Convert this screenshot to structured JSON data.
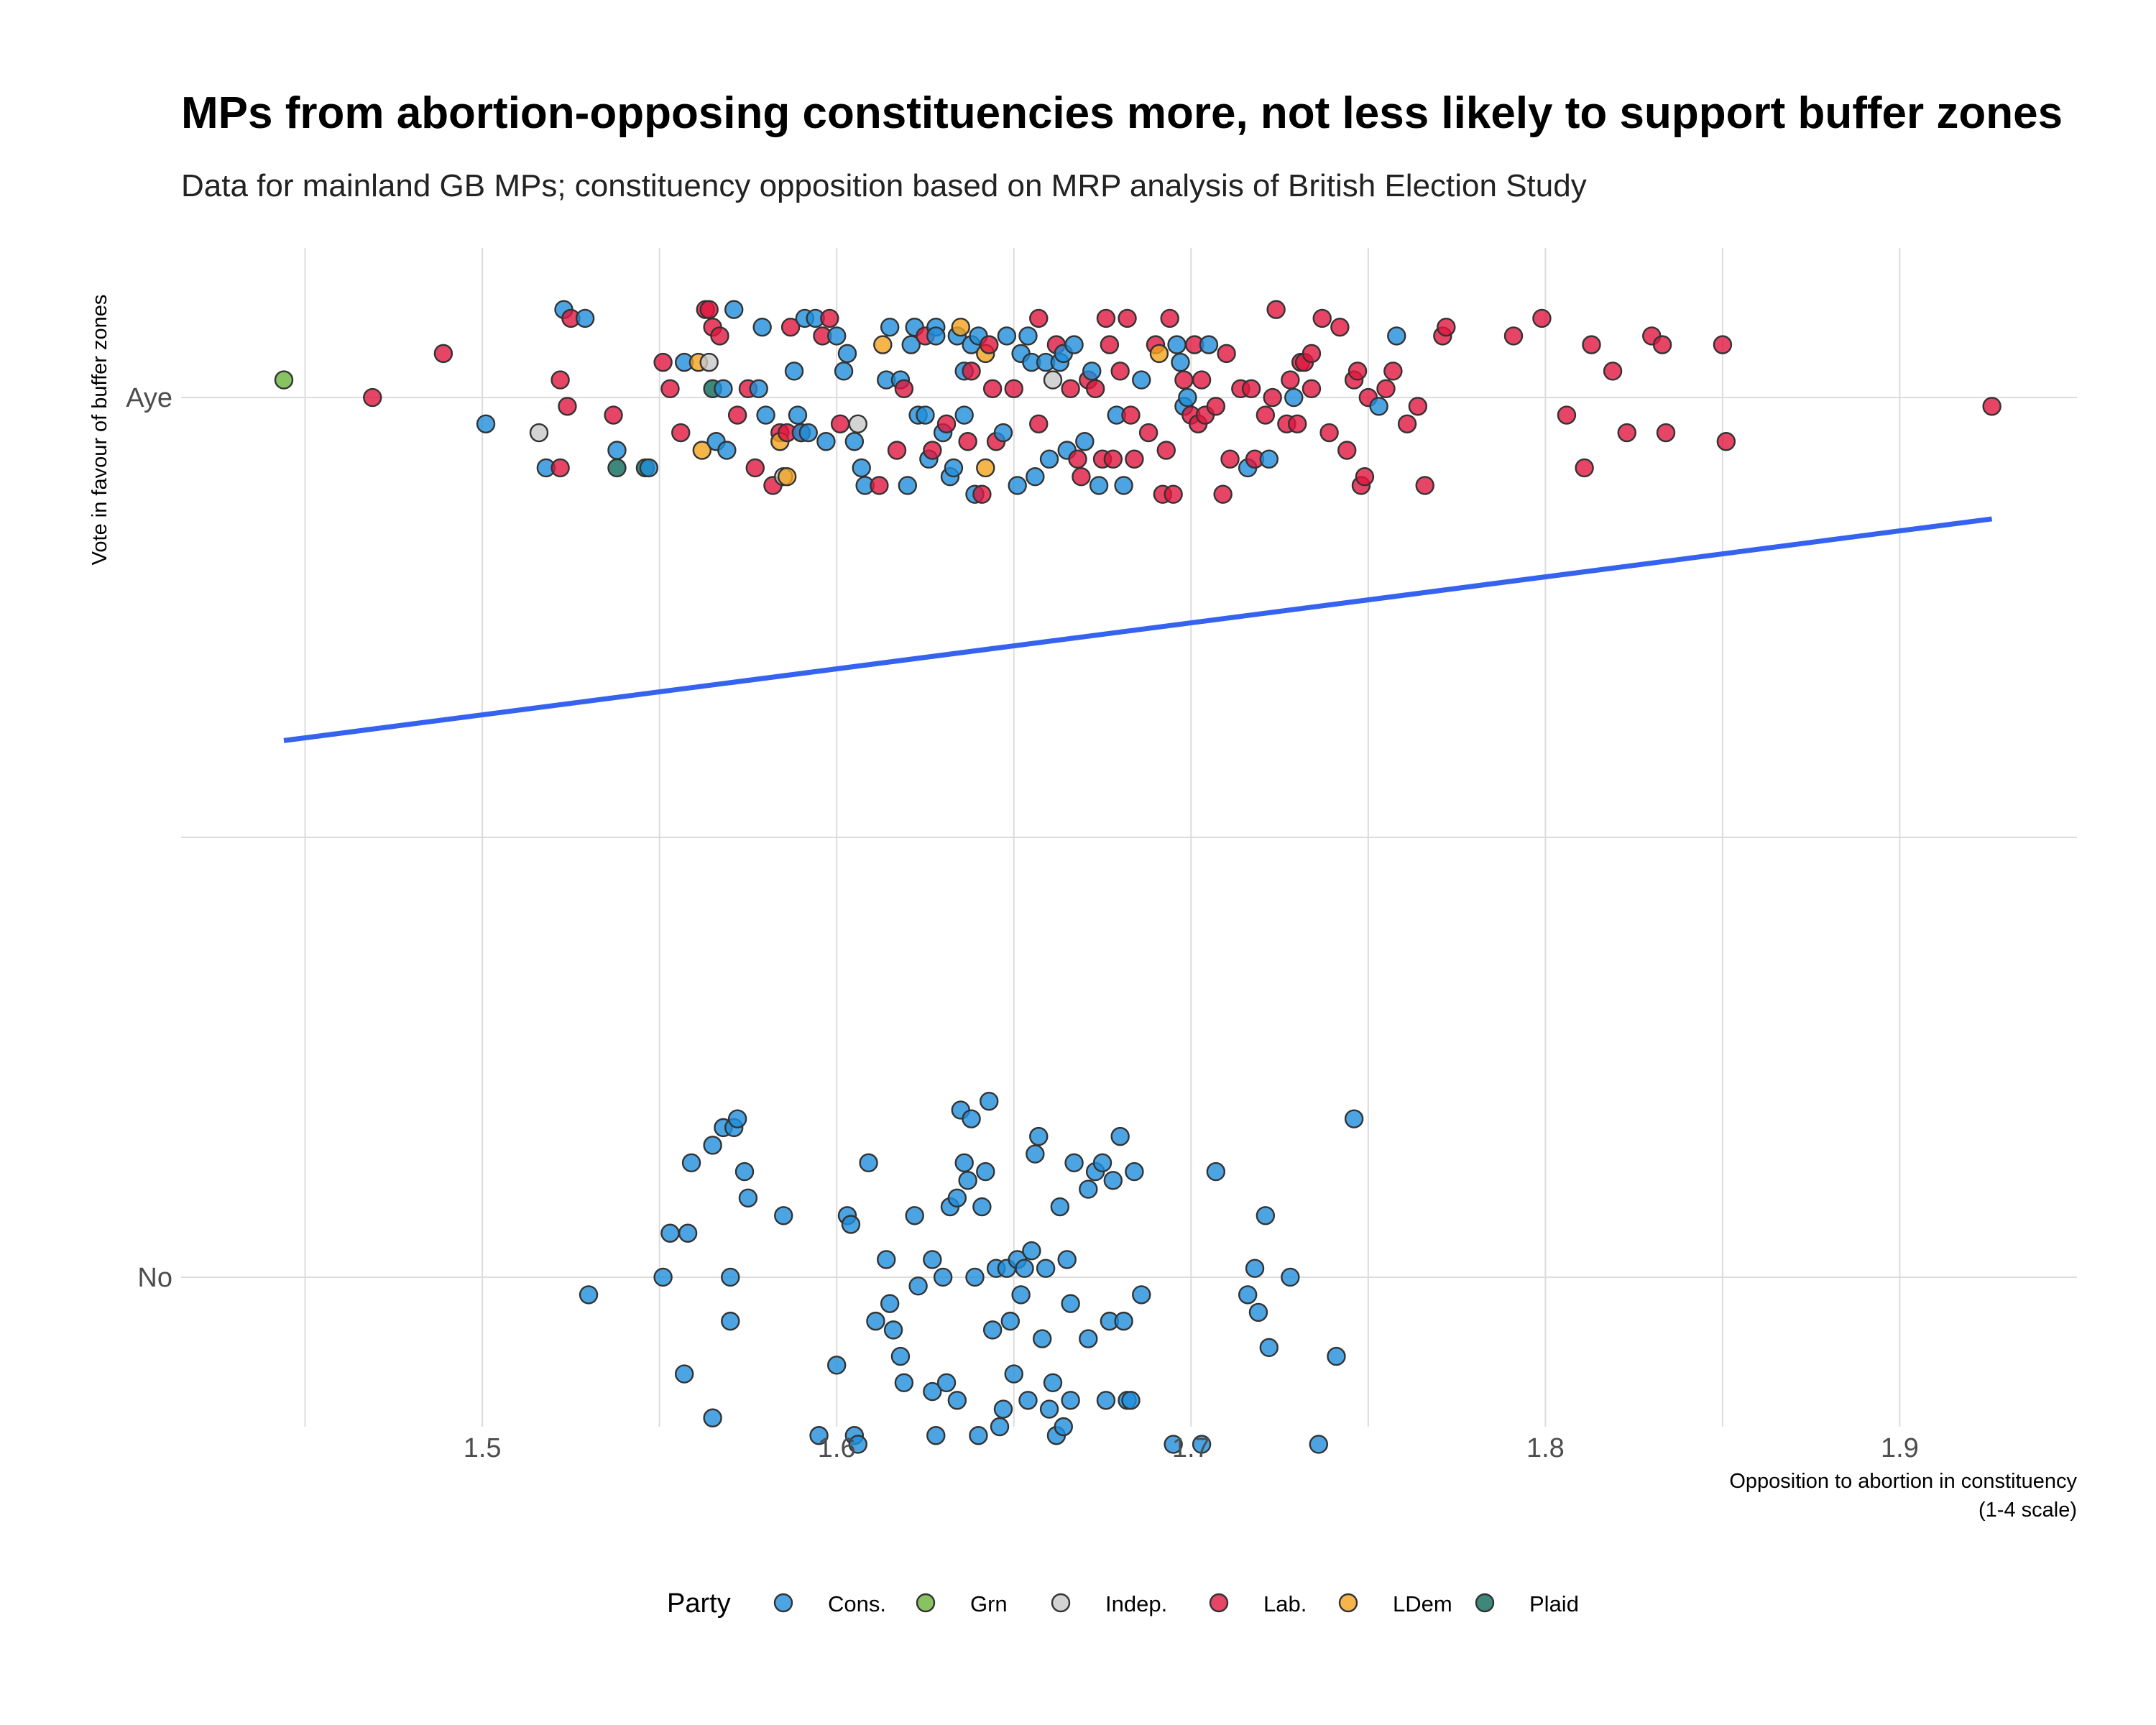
{
  "chart_data": {
    "type": "scatter",
    "title": "MPs from abortion-opposing constituencies more, not less likely to support buffer zones",
    "subtitle": "Data for mainland GB MPs; constituency opposition based on MRP analysis of British Election Study",
    "xlabel_line1": "Opposition to abortion in constituency",
    "xlabel_line2": "(1-4 scale)",
    "ylabel": "Vote in favour of buffer zones",
    "xlim": [
      1.415,
      1.95
    ],
    "x_ticks": [
      {
        "value": 1.5,
        "label": "1.5"
      },
      {
        "value": 1.6,
        "label": "1.6"
      },
      {
        "value": 1.7,
        "label": "1.7"
      },
      {
        "value": 1.8,
        "label": "1.8"
      },
      {
        "value": 1.9,
        "label": "1.9"
      }
    ],
    "x_minor_grid": [
      1.45,
      1.55,
      1.65,
      1.75,
      1.85
    ],
    "ylim": [
      -0.17,
      1.17
    ],
    "y_ticks": [
      {
        "value": 1,
        "label": "Aye"
      },
      {
        "value": 0,
        "label": "No"
      }
    ],
    "y_minor_grid": [
      0.5
    ],
    "grid": true,
    "legend_title": "Party",
    "legend_position": "bottom",
    "parties": [
      {
        "name": "Cons.",
        "color": "#1f8fdb"
      },
      {
        "name": "Grn",
        "color": "#6ab43b"
      },
      {
        "name": "Indep.",
        "color": "#c8c8c8"
      },
      {
        "name": "Lab.",
        "color": "#e0173f"
      },
      {
        "name": "LDem",
        "color": "#f2a31e"
      },
      {
        "name": "Plaid",
        "color": "#0c6a5a"
      }
    ],
    "trend_line": {
      "color": "#3563f0",
      "x": [
        1.444,
        1.926
      ],
      "y": [
        0.61,
        0.862
      ]
    },
    "point_format": "[opposition, vote (1=Aye, 0=No, jittered), party index]",
    "points": [
      [
        1.444,
        1.02,
        1
      ],
      [
        1.469,
        1.0,
        3
      ],
      [
        1.489,
        1.05,
        3
      ],
      [
        1.501,
        0.97,
        0
      ],
      [
        1.516,
        0.96,
        2
      ],
      [
        1.518,
        0.92,
        0
      ],
      [
        1.522,
        1.02,
        3
      ],
      [
        1.522,
        0.92,
        3
      ],
      [
        1.523,
        1.1,
        0
      ],
      [
        1.524,
        0.99,
        3
      ],
      [
        1.525,
        1.09,
        3
      ],
      [
        1.529,
        1.09,
        0
      ],
      [
        1.537,
        0.98,
        3
      ],
      [
        1.538,
        0.94,
        0
      ],
      [
        1.538,
        0.92,
        5
      ],
      [
        1.546,
        0.92,
        5
      ],
      [
        1.547,
        0.92,
        0
      ],
      [
        1.551,
        1.04,
        3
      ],
      [
        1.553,
        1.01,
        3
      ],
      [
        1.556,
        0.96,
        3
      ],
      [
        1.557,
        1.04,
        0
      ],
      [
        1.561,
        1.04,
        4
      ],
      [
        1.562,
        0.94,
        4
      ],
      [
        1.563,
        1.1,
        3
      ],
      [
        1.564,
        1.04,
        2
      ],
      [
        1.564,
        1.1,
        3
      ],
      [
        1.565,
        1.08,
        3
      ],
      [
        1.565,
        1.01,
        5
      ],
      [
        1.566,
        0.95,
        0
      ],
      [
        1.567,
        1.07,
        3
      ],
      [
        1.568,
        1.01,
        0
      ],
      [
        1.569,
        0.94,
        0
      ],
      [
        1.571,
        1.1,
        0
      ],
      [
        1.572,
        0.98,
        3
      ],
      [
        1.575,
        1.01,
        3
      ],
      [
        1.577,
        0.92,
        3
      ],
      [
        1.578,
        1.01,
        0
      ],
      [
        1.579,
        1.08,
        0
      ],
      [
        1.58,
        0.98,
        0
      ],
      [
        1.582,
        0.9,
        3
      ],
      [
        1.584,
        0.96,
        3
      ],
      [
        1.584,
        0.95,
        4
      ],
      [
        1.585,
        0.91,
        2
      ],
      [
        1.586,
        0.91,
        4
      ],
      [
        1.586,
        0.96,
        3
      ],
      [
        1.587,
        1.08,
        3
      ],
      [
        1.588,
        1.03,
        0
      ],
      [
        1.589,
        0.98,
        0
      ],
      [
        1.59,
        0.96,
        3
      ],
      [
        1.59,
        0.96,
        0
      ],
      [
        1.591,
        1.09,
        0
      ],
      [
        1.592,
        0.96,
        0
      ],
      [
        1.594,
        1.09,
        0
      ],
      [
        1.596,
        1.07,
        3
      ],
      [
        1.597,
        0.95,
        0
      ],
      [
        1.598,
        1.09,
        3
      ],
      [
        1.6,
        1.07,
        0
      ],
      [
        1.601,
        0.97,
        3
      ],
      [
        1.602,
        1.03,
        0
      ],
      [
        1.603,
        1.05,
        0
      ],
      [
        1.605,
        0.95,
        0
      ],
      [
        1.606,
        0.97,
        2
      ],
      [
        1.607,
        0.92,
        0
      ],
      [
        1.608,
        0.9,
        0
      ],
      [
        1.612,
        0.9,
        3
      ],
      [
        1.613,
        1.06,
        4
      ],
      [
        1.614,
        1.02,
        0
      ],
      [
        1.615,
        1.08,
        0
      ],
      [
        1.617,
        0.94,
        3
      ],
      [
        1.618,
        1.02,
        0
      ],
      [
        1.619,
        1.01,
        3
      ],
      [
        1.62,
        0.9,
        0
      ],
      [
        1.621,
        1.06,
        0
      ],
      [
        1.622,
        1.08,
        0
      ],
      [
        1.623,
        0.98,
        0
      ],
      [
        1.625,
        1.07,
        3
      ],
      [
        1.625,
        0.98,
        0
      ],
      [
        1.626,
        0.93,
        0
      ],
      [
        1.627,
        0.94,
        3
      ],
      [
        1.628,
        1.08,
        0
      ],
      [
        1.628,
        1.07,
        0
      ],
      [
        1.63,
        0.96,
        0
      ],
      [
        1.631,
        0.97,
        3
      ],
      [
        1.632,
        0.91,
        0
      ],
      [
        1.633,
        0.92,
        0
      ],
      [
        1.634,
        1.07,
        0
      ],
      [
        1.635,
        1.08,
        4
      ],
      [
        1.636,
        0.98,
        0
      ],
      [
        1.636,
        1.03,
        0
      ],
      [
        1.637,
        0.95,
        3
      ],
      [
        1.638,
        1.06,
        0
      ],
      [
        1.638,
        1.03,
        3
      ],
      [
        1.639,
        0.89,
        0
      ],
      [
        1.64,
        1.07,
        0
      ],
      [
        1.641,
        0.89,
        3
      ],
      [
        1.642,
        1.05,
        4
      ],
      [
        1.642,
        0.92,
        4
      ],
      [
        1.643,
        1.06,
        3
      ],
      [
        1.644,
        1.01,
        3
      ],
      [
        1.645,
        0.95,
        3
      ],
      [
        1.647,
        0.96,
        0
      ],
      [
        1.648,
        1.07,
        0
      ],
      [
        1.65,
        1.01,
        3
      ],
      [
        1.651,
        0.9,
        0
      ],
      [
        1.652,
        1.05,
        0
      ],
      [
        1.654,
        1.07,
        0
      ],
      [
        1.655,
        1.04,
        0
      ],
      [
        1.656,
        0.91,
        0
      ],
      [
        1.657,
        1.09,
        3
      ],
      [
        1.657,
        0.97,
        3
      ],
      [
        1.659,
        1.04,
        0
      ],
      [
        1.66,
        0.93,
        0
      ],
      [
        1.661,
        1.02,
        2
      ],
      [
        1.662,
        1.06,
        3
      ],
      [
        1.663,
        1.04,
        0
      ],
      [
        1.664,
        1.05,
        0
      ],
      [
        1.665,
        0.94,
        0
      ],
      [
        1.666,
        1.01,
        3
      ],
      [
        1.667,
        1.06,
        0
      ],
      [
        1.668,
        0.93,
        3
      ],
      [
        1.669,
        0.91,
        3
      ],
      [
        1.67,
        0.95,
        0
      ],
      [
        1.671,
        1.02,
        3
      ],
      [
        1.672,
        1.03,
        0
      ],
      [
        1.673,
        1.01,
        3
      ],
      [
        1.674,
        0.9,
        0
      ],
      [
        1.675,
        0.93,
        3
      ],
      [
        1.676,
        1.09,
        3
      ],
      [
        1.677,
        1.06,
        3
      ],
      [
        1.678,
        0.93,
        3
      ],
      [
        1.679,
        0.98,
        0
      ],
      [
        1.68,
        1.03,
        3
      ],
      [
        1.681,
        0.9,
        0
      ],
      [
        1.682,
        1.09,
        3
      ],
      [
        1.683,
        0.98,
        3
      ],
      [
        1.684,
        0.93,
        3
      ],
      [
        1.686,
        1.02,
        0
      ],
      [
        1.688,
        0.96,
        3
      ],
      [
        1.69,
        1.06,
        3
      ],
      [
        1.691,
        1.05,
        4
      ],
      [
        1.692,
        0.89,
        3
      ],
      [
        1.693,
        0.94,
        3
      ],
      [
        1.694,
        1.09,
        3
      ],
      [
        1.695,
        0.89,
        3
      ],
      [
        1.696,
        1.06,
        0
      ],
      [
        1.697,
        1.04,
        0
      ],
      [
        1.698,
        0.99,
        0
      ],
      [
        1.698,
        1.02,
        3
      ],
      [
        1.699,
        1.0,
        0
      ],
      [
        1.7,
        0.98,
        3
      ],
      [
        1.701,
        1.06,
        3
      ],
      [
        1.702,
        0.97,
        3
      ],
      [
        1.703,
        1.02,
        3
      ],
      [
        1.704,
        0.98,
        3
      ],
      [
        1.705,
        1.06,
        0
      ],
      [
        1.707,
        0.99,
        3
      ],
      [
        1.709,
        0.89,
        3
      ],
      [
        1.71,
        1.05,
        3
      ],
      [
        1.711,
        0.93,
        3
      ],
      [
        1.714,
        1.01,
        3
      ],
      [
        1.716,
        0.92,
        0
      ],
      [
        1.717,
        1.01,
        3
      ],
      [
        1.718,
        0.93,
        3
      ],
      [
        1.721,
        0.98,
        3
      ],
      [
        1.722,
        0.93,
        0
      ],
      [
        1.723,
        1.0,
        3
      ],
      [
        1.724,
        1.1,
        3
      ],
      [
        1.727,
        0.97,
        3
      ],
      [
        1.728,
        1.02,
        3
      ],
      [
        1.729,
        1.0,
        0
      ],
      [
        1.73,
        0.97,
        3
      ],
      [
        1.731,
        1.04,
        3
      ],
      [
        1.732,
        1.04,
        3
      ],
      [
        1.734,
        1.05,
        3
      ],
      [
        1.734,
        1.01,
        3
      ],
      [
        1.737,
        1.09,
        3
      ],
      [
        1.739,
        0.96,
        3
      ],
      [
        1.742,
        1.08,
        3
      ],
      [
        1.744,
        0.94,
        3
      ],
      [
        1.746,
        1.02,
        3
      ],
      [
        1.747,
        1.03,
        3
      ],
      [
        1.748,
        0.9,
        3
      ],
      [
        1.749,
        0.91,
        3
      ],
      [
        1.75,
        1.0,
        3
      ],
      [
        1.753,
        0.99,
        0
      ],
      [
        1.755,
        1.01,
        3
      ],
      [
        1.757,
        1.03,
        3
      ],
      [
        1.758,
        1.07,
        0
      ],
      [
        1.761,
        0.97,
        3
      ],
      [
        1.764,
        0.99,
        3
      ],
      [
        1.766,
        0.9,
        3
      ],
      [
        1.771,
        1.07,
        3
      ],
      [
        1.772,
        1.08,
        3
      ],
      [
        1.791,
        1.07,
        3
      ],
      [
        1.799,
        1.09,
        3
      ],
      [
        1.806,
        0.98,
        3
      ],
      [
        1.811,
        0.92,
        3
      ],
      [
        1.813,
        1.06,
        3
      ],
      [
        1.819,
        1.03,
        3
      ],
      [
        1.823,
        0.96,
        3
      ],
      [
        1.83,
        1.07,
        3
      ],
      [
        1.833,
        1.06,
        3
      ],
      [
        1.834,
        0.96,
        3
      ],
      [
        1.85,
        1.06,
        3
      ],
      [
        1.851,
        0.95,
        3
      ],
      [
        1.926,
        0.99,
        3
      ],
      [
        1.53,
        -0.02,
        0
      ],
      [
        1.551,
        0.0,
        0
      ],
      [
        1.553,
        0.05,
        0
      ],
      [
        1.557,
        -0.11,
        0
      ],
      [
        1.558,
        0.05,
        0
      ],
      [
        1.559,
        0.13,
        0
      ],
      [
        1.565,
        -0.16,
        0
      ],
      [
        1.565,
        0.15,
        0
      ],
      [
        1.568,
        0.17,
        0
      ],
      [
        1.571,
        0.17,
        0
      ],
      [
        1.57,
        0.0,
        0
      ],
      [
        1.57,
        -0.05,
        0
      ],
      [
        1.572,
        0.18,
        0
      ],
      [
        1.574,
        0.12,
        0
      ],
      [
        1.575,
        0.09,
        0
      ],
      [
        1.585,
        0.07,
        0
      ],
      [
        1.595,
        -0.18,
        0
      ],
      [
        1.6,
        -0.1,
        0
      ],
      [
        1.603,
        0.07,
        0
      ],
      [
        1.604,
        0.06,
        0
      ],
      [
        1.605,
        -0.18,
        0
      ],
      [
        1.606,
        -0.19,
        0
      ],
      [
        1.609,
        0.13,
        0
      ],
      [
        1.611,
        -0.05,
        0
      ],
      [
        1.614,
        0.02,
        0
      ],
      [
        1.615,
        -0.03,
        0
      ],
      [
        1.616,
        -0.06,
        0
      ],
      [
        1.618,
        -0.09,
        0
      ],
      [
        1.619,
        -0.12,
        0
      ],
      [
        1.622,
        0.07,
        0
      ],
      [
        1.623,
        -0.01,
        0
      ],
      [
        1.627,
        0.02,
        0
      ],
      [
        1.627,
        -0.13,
        0
      ],
      [
        1.628,
        -0.18,
        0
      ],
      [
        1.63,
        0.0,
        0
      ],
      [
        1.631,
        -0.12,
        0
      ],
      [
        1.632,
        0.08,
        0
      ],
      [
        1.634,
        -0.14,
        0
      ],
      [
        1.634,
        0.09,
        0
      ],
      [
        1.635,
        0.19,
        0
      ],
      [
        1.636,
        0.13,
        0
      ],
      [
        1.637,
        0.11,
        0
      ],
      [
        1.638,
        0.18,
        0
      ],
      [
        1.639,
        0.0,
        0
      ],
      [
        1.64,
        -0.18,
        0
      ],
      [
        1.641,
        0.08,
        0
      ],
      [
        1.642,
        0.12,
        0
      ],
      [
        1.643,
        0.2,
        0
      ],
      [
        1.644,
        -0.06,
        0
      ],
      [
        1.645,
        0.01,
        0
      ],
      [
        1.646,
        -0.17,
        0
      ],
      [
        1.647,
        -0.15,
        0
      ],
      [
        1.648,
        0.01,
        0
      ],
      [
        1.649,
        -0.05,
        0
      ],
      [
        1.65,
        -0.11,
        0
      ],
      [
        1.651,
        0.02,
        0
      ],
      [
        1.652,
        -0.02,
        0
      ],
      [
        1.653,
        0.01,
        0
      ],
      [
        1.654,
        -0.14,
        0
      ],
      [
        1.655,
        0.03,
        0
      ],
      [
        1.656,
        0.14,
        0
      ],
      [
        1.657,
        0.16,
        0
      ],
      [
        1.658,
        -0.07,
        0
      ],
      [
        1.659,
        0.01,
        0
      ],
      [
        1.66,
        -0.15,
        0
      ],
      [
        1.661,
        -0.12,
        0
      ],
      [
        1.662,
        -0.18,
        0
      ],
      [
        1.663,
        0.08,
        0
      ],
      [
        1.664,
        -0.17,
        0
      ],
      [
        1.665,
        0.02,
        0
      ],
      [
        1.666,
        -0.03,
        0
      ],
      [
        1.666,
        -0.14,
        0
      ],
      [
        1.667,
        0.13,
        0
      ],
      [
        1.671,
        -0.07,
        0
      ],
      [
        1.671,
        0.1,
        0
      ],
      [
        1.673,
        0.12,
        0
      ],
      [
        1.675,
        0.13,
        0
      ],
      [
        1.676,
        -0.14,
        0
      ],
      [
        1.677,
        -0.05,
        0
      ],
      [
        1.678,
        0.11,
        0
      ],
      [
        1.68,
        0.16,
        0
      ],
      [
        1.681,
        -0.05,
        0
      ],
      [
        1.682,
        -0.14,
        0
      ],
      [
        1.683,
        -0.14,
        0
      ],
      [
        1.684,
        0.12,
        0
      ],
      [
        1.686,
        -0.02,
        0
      ],
      [
        1.695,
        -0.19,
        0
      ],
      [
        1.703,
        -0.19,
        0
      ],
      [
        1.707,
        0.12,
        0
      ],
      [
        1.716,
        -0.02,
        0
      ],
      [
        1.718,
        0.01,
        0
      ],
      [
        1.719,
        -0.04,
        0
      ],
      [
        1.721,
        0.07,
        0
      ],
      [
        1.722,
        -0.08,
        0
      ],
      [
        1.728,
        0.0,
        0
      ],
      [
        1.736,
        -0.19,
        0
      ],
      [
        1.741,
        -0.09,
        0
      ],
      [
        1.746,
        0.18,
        0
      ]
    ]
  }
}
